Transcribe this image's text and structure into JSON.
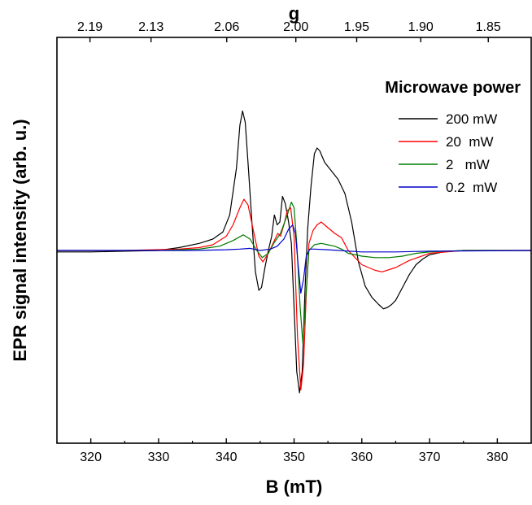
{
  "chart_data": {
    "type": "line",
    "xlabel": "B (mT)",
    "ylabel": "EPR signal intensity (arb. u.)",
    "top_axis_label": "g",
    "xlim": [
      315,
      385
    ],
    "ylim": [
      -1.1,
      1.1
    ],
    "x_ticks": [
      320,
      330,
      340,
      350,
      360,
      370,
      380
    ],
    "x_tick_labels": [
      "320",
      "330",
      "340",
      "350",
      "360",
      "370",
      "380"
    ],
    "g_ticks": [
      2.19,
      2.13,
      2.06,
      2.0,
      1.95,
      1.9,
      1.85
    ],
    "g_tick_labels": [
      "2.19",
      "2.13",
      "2.06",
      "2.00",
      "1.95",
      "1.90",
      "1.85"
    ],
    "legend": {
      "title": "Microwave power",
      "placement": "top-right",
      "entries": [
        "200 mW",
        "20  mW",
        "2   mW",
        "0.2  mW"
      ]
    },
    "series": [
      {
        "name": "200 mW",
        "color": "#000000",
        "x": [
          315,
          320,
          325,
          330,
          333,
          336,
          338,
          339.5,
          340.5,
          341.5,
          342,
          342.4,
          342.8,
          343.3,
          343.8,
          344.3,
          344.8,
          345.2,
          345.7,
          346.2,
          346.7,
          347.1,
          347.5,
          347.9,
          348.3,
          348.7,
          349.2,
          349.6,
          350,
          350.4,
          350.8,
          351.2,
          351.6,
          352,
          352.5,
          353,
          353.4,
          353.8,
          354.5,
          355.5,
          356.5,
          357.5,
          358.5,
          359.5,
          360.5,
          361.5,
          362.5,
          363.2,
          363.8,
          364.4,
          365,
          366,
          367,
          368,
          369,
          370,
          372,
          375,
          380,
          385
        ],
        "y": [
          -0.01,
          -0.01,
          -0.005,
          0.0,
          0.02,
          0.05,
          0.08,
          0.13,
          0.25,
          0.58,
          0.88,
          0.98,
          0.9,
          0.55,
          0.18,
          -0.15,
          -0.28,
          -0.26,
          -0.12,
          0.0,
          0.1,
          0.25,
          0.18,
          0.2,
          0.38,
          0.33,
          0.2,
          0.05,
          -0.4,
          -0.85,
          -1.0,
          -0.85,
          -0.3,
          0.15,
          0.45,
          0.68,
          0.72,
          0.7,
          0.62,
          0.56,
          0.5,
          0.4,
          0.2,
          -0.08,
          -0.25,
          -0.33,
          -0.38,
          -0.41,
          -0.4,
          -0.38,
          -0.35,
          -0.26,
          -0.17,
          -0.1,
          -0.06,
          -0.03,
          -0.01,
          0.0,
          0.0,
          0.0
        ]
      },
      {
        "name": "20  mW",
        "color": "#ff0000",
        "x": [
          315,
          325,
          333,
          336,
          338,
          340,
          341,
          342,
          342.6,
          343.2,
          344,
          344.8,
          345.4,
          346.2,
          347,
          347.6,
          348,
          348.5,
          349,
          349.5,
          350,
          350.5,
          351,
          351.4,
          351.8,
          352.2,
          352.8,
          353.4,
          354,
          355,
          356,
          357,
          358,
          360,
          362,
          363,
          365,
          367,
          370,
          375,
          385
        ],
        "y": [
          0.0,
          0.0,
          0.01,
          0.02,
          0.04,
          0.1,
          0.18,
          0.3,
          0.36,
          0.32,
          0.14,
          -0.04,
          -0.08,
          -0.02,
          0.06,
          0.12,
          0.1,
          0.18,
          0.28,
          0.3,
          0.1,
          -0.6,
          -0.98,
          -0.8,
          -0.3,
          0.05,
          0.14,
          0.18,
          0.2,
          0.16,
          0.12,
          0.09,
          0.0,
          -0.1,
          -0.14,
          -0.15,
          -0.12,
          -0.07,
          -0.02,
          0.0,
          0.0
        ]
      },
      {
        "name": "2   mW",
        "color": "#007a00",
        "x": [
          315,
          330,
          336,
          339,
          341,
          342.5,
          343.5,
          344.5,
          345.3,
          346.2,
          347,
          348,
          349,
          349.6,
          350,
          350.4,
          350.9,
          351.3,
          351.7,
          352.2,
          353,
          354,
          355,
          356,
          357,
          358,
          360,
          362,
          364,
          366,
          368,
          370,
          375,
          385
        ],
        "y": [
          0.0,
          0.0,
          0.01,
          0.03,
          0.07,
          0.11,
          0.08,
          0.0,
          -0.05,
          -0.02,
          0.05,
          0.12,
          0.25,
          0.34,
          0.3,
          0.05,
          -0.4,
          -0.65,
          -0.35,
          0.0,
          0.04,
          0.05,
          0.04,
          0.03,
          0.01,
          -0.02,
          -0.04,
          -0.05,
          -0.05,
          -0.04,
          -0.02,
          -0.01,
          0.0,
          0.0
        ]
      },
      {
        "name": "0.2  mW",
        "color": "#0000cc",
        "x": [
          315,
          335,
          340,
          342,
          343.5,
          345,
          346.5,
          347.5,
          348.5,
          349.2,
          349.8,
          350.2,
          350.6,
          351,
          351.4,
          351.8,
          352.3,
          353,
          355,
          360,
          365,
          370,
          385
        ],
        "y": [
          0.0,
          0.0,
          0.005,
          0.01,
          0.015,
          0.0,
          0.01,
          0.03,
          0.08,
          0.15,
          0.18,
          0.12,
          -0.1,
          -0.3,
          -0.2,
          -0.04,
          0.01,
          0.01,
          0.005,
          -0.01,
          -0.01,
          -0.005,
          0.0
        ]
      }
    ]
  }
}
